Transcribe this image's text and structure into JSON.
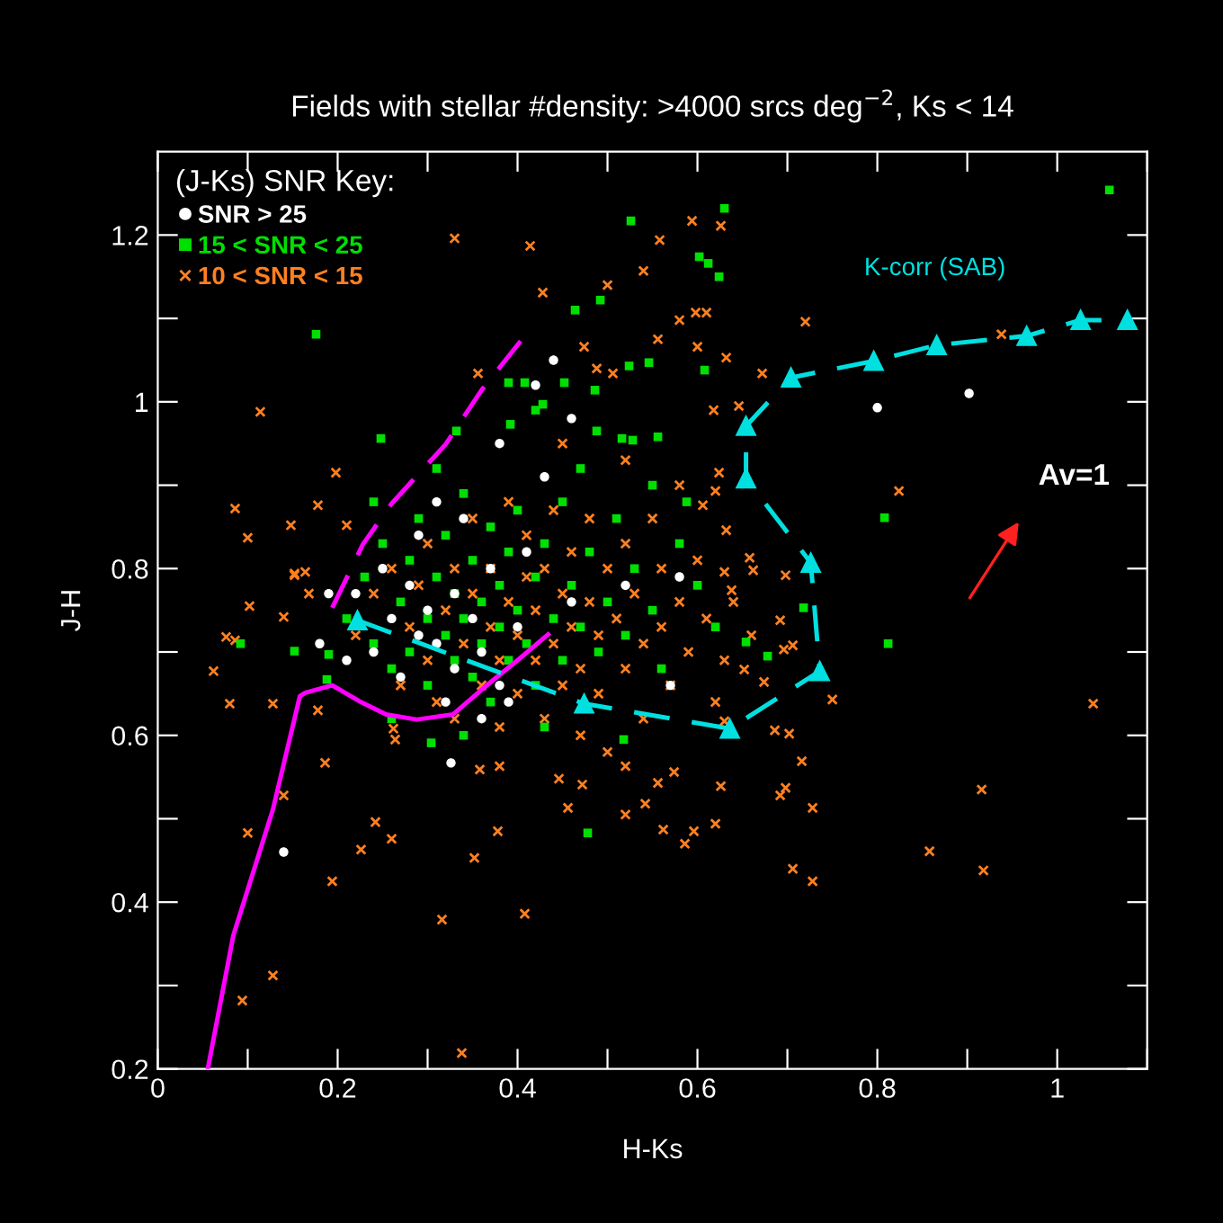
{
  "chart_data": {
    "type": "scatter",
    "title": "Fields with stellar #density: >4000 srcs deg$^{−2}$, Ks < 14",
    "xlabel": "H-Ks",
    "ylabel": "J-H",
    "legend_title": "(J-Ks) SNR Key:",
    "legend": "top left",
    "xlim": [
      0,
      1.1
    ],
    "ylim": [
      0.2,
      1.3
    ],
    "xticks": [
      0,
      {
        "value": 0.1,
        "label": null
      },
      0.2,
      {
        "value": 0.3,
        "label": null
      },
      0.4,
      {
        "value": 0.5,
        "label": null
      },
      0.6,
      {
        "value": 0.7,
        "label": null
      },
      0.8,
      {
        "value": 0.9,
        "label": null
      },
      1,
      {
        "value": 1.1,
        "label": null
      }
    ],
    "yticks": [
      0.2,
      {
        "value": 0.3,
        "label": null
      },
      0.4,
      {
        "value": 0.5,
        "label": null
      },
      0.6,
      {
        "value": 0.7,
        "label": null
      },
      0.8,
      {
        "value": 0.9,
        "label": null
      },
      1,
      {
        "value": 1.1,
        "label": null
      },
      1.2
    ],
    "grid": false,
    "series": [
      {
        "name": "10 < SNR < 15",
        "marker": "cross",
        "color": "#ff8020",
        "x": [
          0.33,
          0.414,
          0.428,
          0.5,
          0.54,
          0.114,
          0.198,
          0.086,
          0.148,
          0.178,
          0.1,
          0.152,
          0.164,
          0.21,
          0.356,
          0.474,
          0.488,
          0.506,
          0.076,
          0.086,
          0.062,
          0.08,
          0.128,
          0.102,
          0.14,
          0.152,
          0.168,
          0.178,
          0.186,
          0.14,
          0.1,
          0.226,
          0.26,
          0.242,
          0.194,
          0.378,
          0.352,
          0.316,
          0.408,
          0.128,
          0.094,
          0.338,
          0.262,
          0.264,
          0.358,
          0.38,
          0.446,
          0.456,
          0.472,
          0.52,
          0.542,
          0.52,
          0.562,
          0.596,
          0.586,
          0.62,
          0.574,
          0.556,
          0.626,
          0.716,
          0.692,
          0.698,
          0.728,
          0.706,
          0.728,
          0.858,
          0.918,
          0.916,
          1.04,
          0.75,
          0.702,
          0.686,
          0.674,
          0.652,
          0.696,
          0.706,
          0.692,
          0.698,
          0.662,
          0.658,
          0.638,
          0.63,
          0.594,
          0.626,
          0.558,
          0.72,
          0.58,
          0.598,
          0.61,
          0.556,
          0.6,
          0.632,
          0.672,
          0.646,
          0.618,
          0.938,
          0.824,
          0.624,
          0.62,
          0.606,
          0.632,
          0.63,
          0.22,
          0.24,
          0.26,
          0.27,
          0.28,
          0.29,
          0.3,
          0.3,
          0.31,
          0.32,
          0.33,
          0.33,
          0.34,
          0.35,
          0.35,
          0.36,
          0.37,
          0.37,
          0.38,
          0.38,
          0.39,
          0.39,
          0.4,
          0.4,
          0.41,
          0.41,
          0.42,
          0.42,
          0.43,
          0.43,
          0.44,
          0.44,
          0.45,
          0.45,
          0.46,
          0.46,
          0.47,
          0.47,
          0.48,
          0.48,
          0.49,
          0.49,
          0.5,
          0.5,
          0.51,
          0.52,
          0.52,
          0.53,
          0.54,
          0.54,
          0.55,
          0.56,
          0.56,
          0.57,
          0.58,
          0.59,
          0.6,
          0.61,
          0.62,
          0.63,
          0.58,
          0.52,
          0.45,
          0.64,
          0.66
        ],
        "values": [
          1.196,
          1.187,
          1.131,
          1.14,
          1.157,
          0.988,
          0.915,
          0.872,
          0.852,
          0.876,
          0.837,
          0.794,
          0.796,
          0.852,
          1.034,
          1.066,
          1.04,
          1.034,
          0.718,
          0.714,
          0.677,
          0.638,
          0.638,
          0.755,
          0.742,
          0.792,
          0.77,
          0.63,
          0.567,
          0.528,
          0.483,
          0.463,
          0.476,
          0.496,
          0.425,
          0.485,
          0.453,
          0.379,
          0.386,
          0.312,
          0.282,
          0.219,
          0.608,
          0.595,
          0.559,
          0.563,
          0.548,
          0.513,
          0.541,
          0.563,
          0.518,
          0.505,
          0.487,
          0.485,
          0.47,
          0.494,
          0.556,
          0.543,
          0.539,
          0.569,
          0.528,
          0.537,
          0.513,
          0.44,
          0.425,
          0.461,
          0.438,
          0.535,
          0.638,
          0.643,
          0.602,
          0.606,
          0.664,
          0.679,
          0.703,
          0.708,
          0.738,
          0.792,
          0.798,
          0.813,
          0.774,
          0.617,
          1.217,
          1.211,
          1.194,
          1.096,
          1.098,
          1.107,
          1.107,
          1.075,
          1.066,
          1.053,
          1.034,
          0.995,
          0.99,
          1.081,
          0.893,
          0.915,
          0.893,
          0.876,
          0.846,
          0.796,
          0.72,
          0.77,
          0.8,
          0.66,
          0.73,
          0.78,
          0.83,
          0.69,
          0.64,
          0.75,
          0.8,
          0.62,
          0.71,
          0.77,
          0.86,
          0.66,
          0.73,
          0.8,
          0.61,
          0.69,
          0.76,
          0.88,
          0.65,
          0.72,
          0.79,
          0.84,
          0.69,
          0.75,
          0.62,
          0.8,
          0.71,
          0.87,
          0.66,
          0.77,
          0.73,
          0.82,
          0.68,
          0.6,
          0.76,
          0.86,
          0.72,
          0.65,
          0.8,
          0.58,
          0.74,
          0.68,
          0.83,
          0.77,
          0.62,
          0.71,
          0.86,
          0.8,
          0.73,
          0.66,
          0.76,
          0.7,
          0.81,
          0.74,
          0.64,
          0.69,
          0.9,
          0.93,
          0.95,
          0.76,
          0.72
        ]
      },
      {
        "name": "15 < SNR < 25",
        "marker": "square",
        "color": "#00e000",
        "x": [
          1.058,
          0.176,
          0.63,
          0.526,
          0.602,
          0.612,
          0.624,
          0.492,
          0.464,
          0.608,
          0.546,
          0.524,
          0.556,
          0.528,
          0.588,
          0.808,
          0.718,
          0.812,
          0.654,
          0.678,
          0.478,
          0.518,
          0.304,
          0.152,
          0.092,
          0.188,
          0.19,
          0.248,
          0.332,
          0.392,
          0.42,
          0.428,
          0.452,
          0.486,
          0.488,
          0.516,
          0.39,
          0.408,
          0.21,
          0.23,
          0.24,
          0.25,
          0.26,
          0.27,
          0.28,
          0.28,
          0.29,
          0.3,
          0.3,
          0.31,
          0.32,
          0.32,
          0.33,
          0.33,
          0.34,
          0.34,
          0.35,
          0.35,
          0.36,
          0.36,
          0.37,
          0.37,
          0.38,
          0.38,
          0.39,
          0.39,
          0.4,
          0.4,
          0.41,
          0.42,
          0.42,
          0.43,
          0.44,
          0.45,
          0.45,
          0.46,
          0.47,
          0.48,
          0.49,
          0.5,
          0.51,
          0.52,
          0.53,
          0.55,
          0.56,
          0.58,
          0.6,
          0.62,
          0.26,
          0.34,
          0.43,
          0.24,
          0.31,
          0.47,
          0.55
        ],
        "values": [
          1.254,
          1.081,
          1.232,
          1.217,
          1.174,
          1.166,
          1.15,
          1.122,
          1.11,
          1.038,
          1.047,
          1.043,
          0.958,
          0.954,
          0.88,
          0.861,
          0.753,
          0.71,
          0.712,
          0.695,
          0.483,
          0.595,
          0.591,
          0.701,
          0.71,
          0.667,
          0.697,
          0.956,
          0.965,
          0.973,
          0.99,
          0.997,
          1.023,
          1.014,
          0.965,
          0.956,
          1.023,
          1.023,
          0.74,
          0.79,
          0.71,
          0.83,
          0.68,
          0.76,
          0.81,
          0.7,
          0.86,
          0.74,
          0.66,
          0.79,
          0.72,
          0.84,
          0.69,
          0.77,
          0.74,
          0.89,
          0.81,
          0.67,
          0.76,
          0.71,
          0.85,
          0.64,
          0.78,
          0.73,
          0.69,
          0.82,
          0.75,
          0.87,
          0.71,
          0.79,
          0.66,
          0.83,
          0.74,
          0.69,
          0.88,
          0.78,
          0.73,
          0.82,
          0.7,
          0.76,
          0.86,
          0.72,
          0.8,
          0.75,
          0.68,
          0.83,
          0.78,
          0.73,
          0.62,
          0.6,
          0.61,
          0.88,
          0.92,
          0.92,
          0.9
        ]
      },
      {
        "name": "SNR > 25",
        "marker": "circle",
        "color": "#ffffff",
        "x": [
          0.44,
          0.42,
          0.46,
          0.38,
          0.43,
          0.31,
          0.34,
          0.29,
          0.41,
          0.37,
          0.25,
          0.22,
          0.19,
          0.28,
          0.33,
          0.3,
          0.35,
          0.26,
          0.4,
          0.29,
          0.31,
          0.24,
          0.36,
          0.21,
          0.33,
          0.27,
          0.38,
          0.32,
          0.46,
          0.52,
          0.58,
          0.326,
          0.18,
          0.14,
          0.8,
          0.902,
          0.57,
          0.36,
          0.39
        ],
        "values": [
          1.05,
          1.02,
          0.98,
          0.95,
          0.91,
          0.88,
          0.86,
          0.84,
          0.82,
          0.8,
          0.8,
          0.77,
          0.77,
          0.78,
          0.77,
          0.75,
          0.74,
          0.74,
          0.73,
          0.72,
          0.71,
          0.7,
          0.7,
          0.69,
          0.68,
          0.67,
          0.66,
          0.64,
          0.76,
          0.78,
          0.79,
          0.567,
          0.71,
          0.46,
          0.993,
          1.01,
          0.66,
          0.62,
          0.64
        ]
      },
      {
        "type": "line",
        "color": "#ff00ff",
        "line_style": "solid",
        "marker": "none",
        "x": [
          0.056,
          0.084,
          0.128,
          0.158,
          0.164,
          0.194,
          0.224,
          0.254,
          0.288,
          0.328,
          0.368,
          0.4,
          0.434
        ],
        "values": [
          0.202,
          0.36,
          0.511,
          0.647,
          0.651,
          0.66,
          0.641,
          0.625,
          0.619,
          0.625,
          0.662,
          0.69,
          0.721
        ]
      },
      {
        "type": "line",
        "color": "#ff00ff",
        "line_style": "dashed",
        "marker": "none",
        "x": [
          0.194,
          0.228,
          0.26,
          0.32,
          0.36,
          0.408
        ],
        "values": [
          0.753,
          0.829,
          0.878,
          0.949,
          1.014,
          1.079
        ]
      },
      {
        "name": "K-corr (SAB)",
        "type": "line",
        "color": "#00e0e0",
        "line_style": "dashed",
        "marker": "triangle",
        "x": [
          0.222,
          0.474,
          0.636,
          0.736,
          0.726,
          0.654,
          0.654,
          0.704,
          0.796,
          0.866,
          0.966,
          1.026,
          1.078
        ],
        "values": [
          0.738,
          0.638,
          0.608,
          0.677,
          0.807,
          0.908,
          0.971,
          1.029,
          1.049,
          1.068,
          1.079,
          1.098,
          1.098
        ]
      }
    ],
    "annotations": [
      "Av=1"
    ]
  }
}
